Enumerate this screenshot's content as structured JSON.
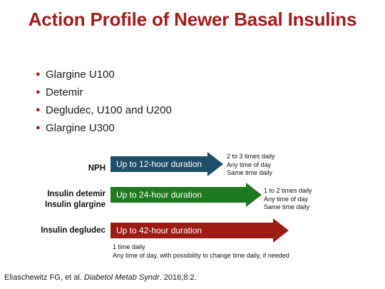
{
  "slide": {
    "title": "Action Profile of Newer Basal Insulins",
    "bullets": [
      "Glargine U100",
      "Detemir",
      "Degludec, U100 and U200",
      "Glargine U300"
    ],
    "rows": [
      {
        "label_lines": [
          "NPH"
        ],
        "arrow_text": "Up to 12-hour duration",
        "color": "#1f4e6b",
        "notes": [
          "2 to 3 times daily",
          "Any time of day",
          "Same time daily"
        ]
      },
      {
        "label_lines": [
          "Insulin detemir",
          "Insulin glargine"
        ],
        "arrow_text": "Up to 24-hour duration",
        "color": "#1e7a1e",
        "notes": [
          "1 to 2 times daily",
          "Any time of day",
          "Same time daily"
        ]
      },
      {
        "label_lines": [
          "Insulin degludec"
        ],
        "arrow_text": "Up to 42-hour duration",
        "color": "#9c1c14",
        "notes": [
          "1 time daily",
          "Any time of day, with possibility to change time daily, if needed"
        ]
      }
    ],
    "citation": {
      "authors": "Eliaschewitz FG, et al. ",
      "journal": "Diabetol Metab Syndr",
      "details": ". 2016;8:2."
    }
  }
}
